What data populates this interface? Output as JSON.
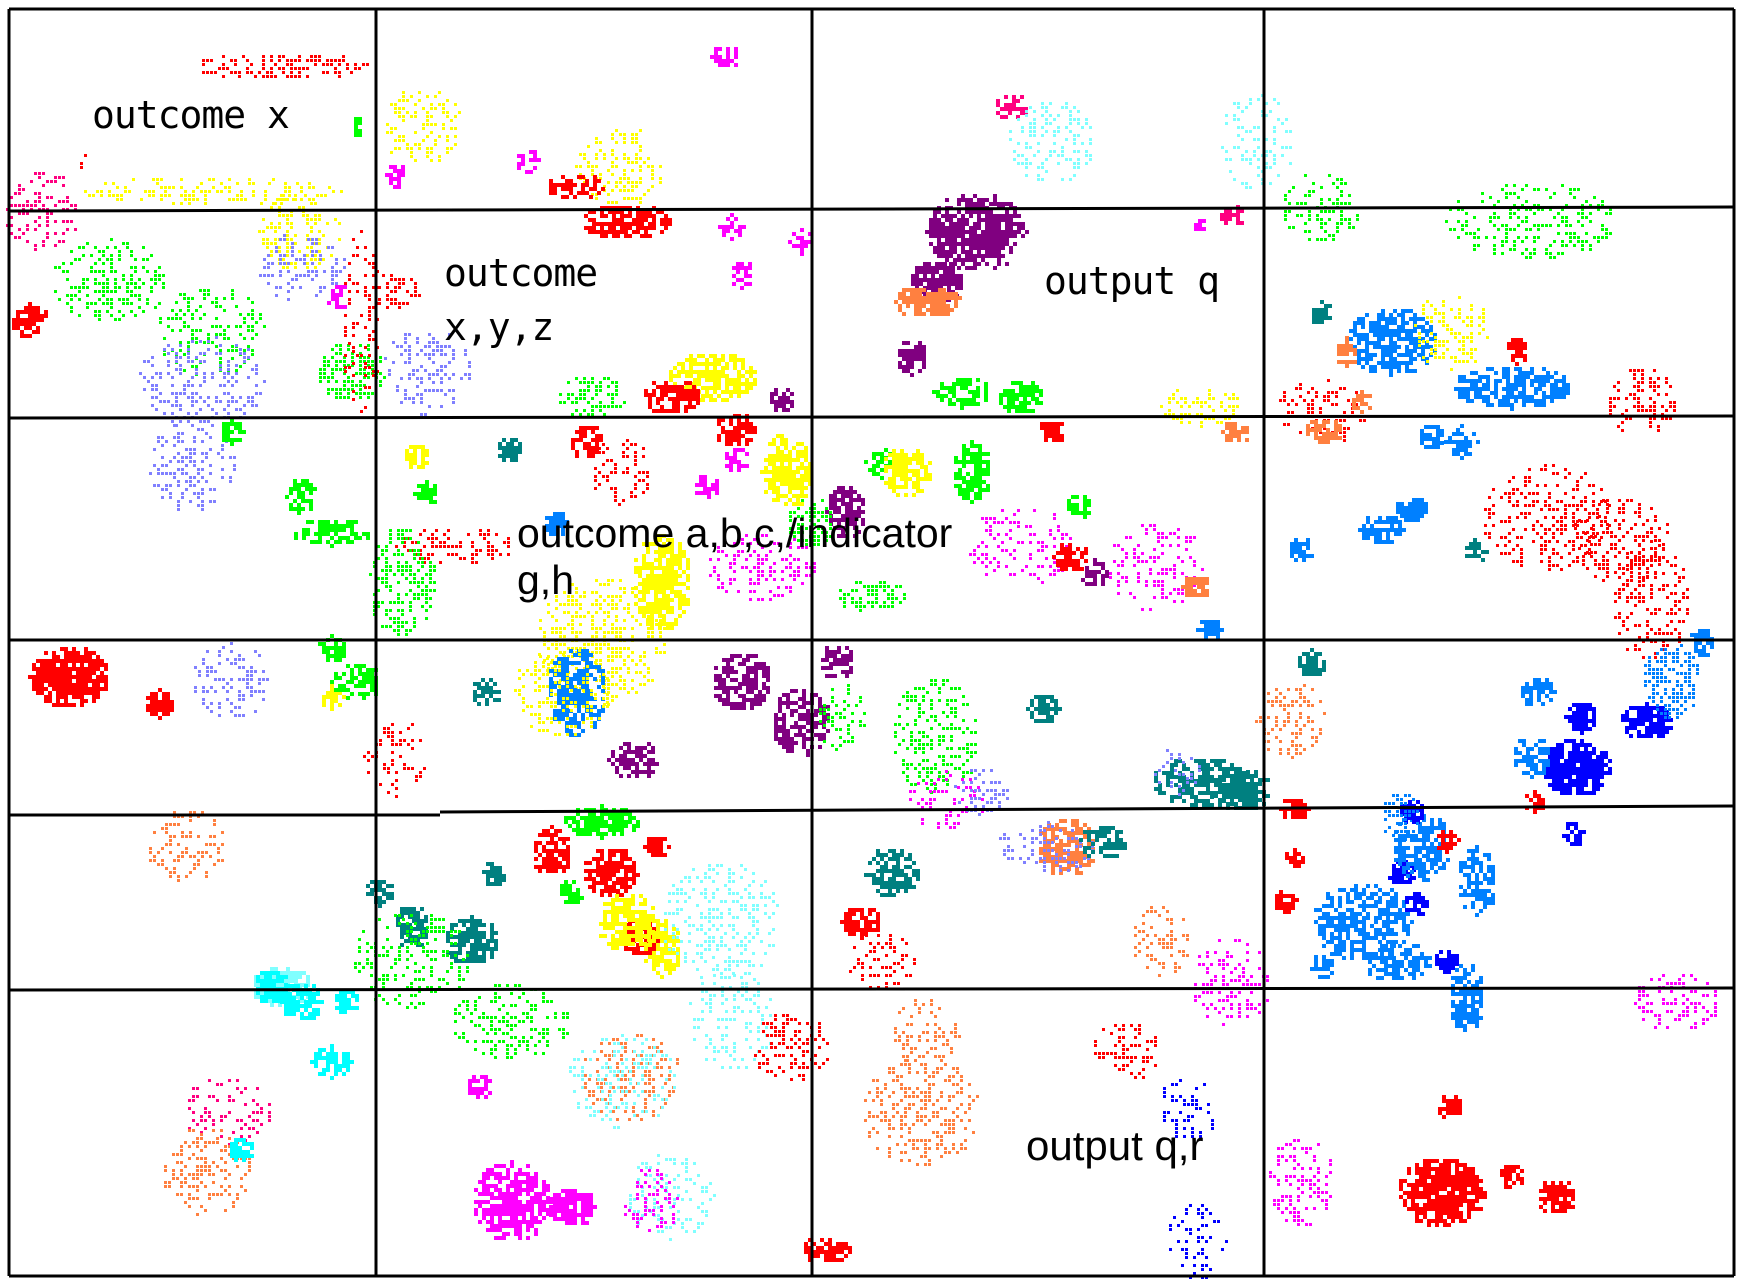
{
  "labels": {
    "outcome_x": "outcome x",
    "outcome_xyz_line1": "outcome",
    "outcome_xyz_line2": "x,y,z",
    "output_q": "output q",
    "outcome_abc_line1": "outcome a,b,c,/indicator",
    "outcome_abc_line2": "g,h",
    "output_qr": "output q,r"
  },
  "colors": {
    "red": "#ff0000",
    "yellow": "#ffff00",
    "green": "#00ff00",
    "lavender": "#8080ff",
    "magenta": "#ff00ff",
    "pink": "#ff0080",
    "cyan": "#80ffff",
    "aqua": "#00ffff",
    "purple": "#800080",
    "orange": "#ff8040",
    "teal": "#008080",
    "azure": "#0080ff",
    "blue": "#0000ff",
    "grid": "#000000"
  }
}
